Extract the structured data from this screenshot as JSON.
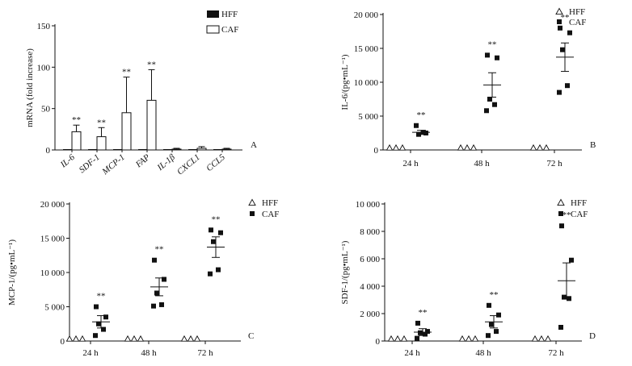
{
  "colors": {
    "ink": "#111111",
    "background": "#ffffff"
  },
  "chart_data": [
    {
      "id": "A",
      "type": "bar",
      "panel_label": "A",
      "ylabel": "mRNA (fold increase)",
      "ylim": [
        0,
        150
      ],
      "yticks": [
        0,
        50,
        100,
        150
      ],
      "ytick_labels": [
        "0",
        "50",
        "100",
        "150"
      ],
      "categories": [
        "IL-6",
        "SDF-1",
        "MCP-1",
        "FAP",
        "IL-1β",
        "CXCL1",
        "CCL5"
      ],
      "legend": [
        "HFF",
        "CAF"
      ],
      "series": [
        {
          "name": "HFF",
          "values": [
            1,
            1,
            1,
            1,
            1,
            1,
            1
          ],
          "errors": [
            0,
            0,
            0,
            0,
            0,
            0,
            0
          ]
        },
        {
          "name": "CAF",
          "values": [
            22,
            16,
            45,
            60,
            1,
            2,
            1
          ],
          "errors": [
            8,
            11,
            43,
            37,
            1,
            2,
            1
          ]
        }
      ],
      "annotations": [
        "**",
        "**",
        "**",
        "**",
        "",
        "",
        ""
      ]
    },
    {
      "id": "B",
      "type": "scatter",
      "panel_label": "B",
      "ylabel": "IL-6/(pg•mL⁻¹)",
      "ylim": [
        0,
        20000
      ],
      "yticks": [
        0,
        5000,
        10000,
        15000,
        20000
      ],
      "ytick_labels": [
        "0",
        "5 000",
        "10 000",
        "15 000",
        "20 000"
      ],
      "categories": [
        "24 h",
        "48 h",
        "72 h"
      ],
      "legend": [
        "HFF",
        "CAF"
      ],
      "series": [
        {
          "name": "HFF",
          "values": [
            [
              0,
              0,
              0
            ],
            [
              0,
              0,
              0
            ],
            [
              0,
              0,
              0
            ]
          ]
        },
        {
          "name": "CAF",
          "values": [
            [
              3600,
              2500,
              2300,
              2600
            ],
            [
              14000,
              13600,
              7500,
              6700,
              5800
            ],
            [
              18000,
              17300,
              14800,
              9500,
              8500
            ]
          ],
          "mean": [
            2600,
            9600,
            13700
          ],
          "sem": [
            300,
            1800,
            2100
          ]
        }
      ],
      "annotations": [
        "**",
        "**",
        "**"
      ]
    },
    {
      "id": "C",
      "type": "scatter",
      "panel_label": "C",
      "ylabel": "MCP-1/(pg•mL⁻¹)",
      "ylim": [
        0,
        20000
      ],
      "yticks": [
        0,
        5000,
        10000,
        15000,
        20000
      ],
      "ytick_labels": [
        "0",
        "5 000",
        "10 000",
        "15 000",
        "20 000"
      ],
      "categories": [
        "24 h",
        "48 h",
        "72 h"
      ],
      "legend": [
        "HFF",
        "CAF"
      ],
      "series": [
        {
          "name": "HFF",
          "values": [
            [
              0,
              0,
              0
            ],
            [
              0,
              0,
              0
            ],
            [
              0,
              0,
              0
            ]
          ]
        },
        {
          "name": "CAF",
          "values": [
            [
              5000,
              3500,
              2500,
              1700,
              800
            ],
            [
              11800,
              9000,
              7000,
              5300,
              5100
            ],
            [
              16200,
              15800,
              14500,
              10400,
              9800
            ]
          ],
          "mean": [
            2800,
            7900,
            13700
          ],
          "sem": [
            900,
            1300,
            1500
          ]
        }
      ],
      "annotations": [
        "**",
        "**",
        "**"
      ]
    },
    {
      "id": "D",
      "type": "scatter",
      "panel_label": "D",
      "ylabel": "SDF-1/(pg•mL⁻¹)",
      "ylim": [
        0,
        10000
      ],
      "yticks": [
        0,
        2000,
        4000,
        6000,
        8000,
        10000
      ],
      "ytick_labels": [
        "0",
        "2 000",
        "4 000",
        "6 000",
        "8 000",
        "10 000"
      ],
      "categories": [
        "24 h",
        "48 h",
        "72 h"
      ],
      "legend": [
        "HFF",
        "CAF"
      ],
      "series": [
        {
          "name": "HFF",
          "values": [
            [
              0,
              0,
              0
            ],
            [
              0,
              0,
              0
            ],
            [
              0,
              0,
              0
            ]
          ]
        },
        {
          "name": "CAF",
          "values": [
            [
              1300,
              700,
              600,
              500,
              200
            ],
            [
              2600,
              1900,
              1200,
              700,
              400
            ],
            [
              8400,
              5900,
              3200,
              3100,
              1000
            ]
          ],
          "mean": [
            650,
            1400,
            4400
          ],
          "sem": [
            250,
            450,
            1300
          ]
        }
      ],
      "annotations": [
        "**",
        "**",
        "**"
      ]
    }
  ]
}
